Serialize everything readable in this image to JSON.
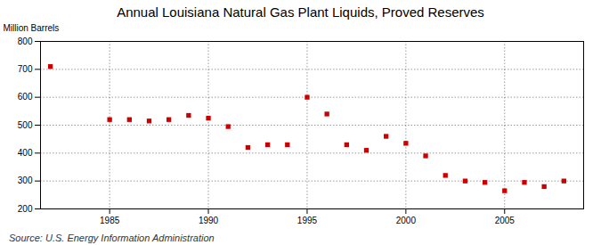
{
  "chart_data": {
    "type": "scatter",
    "title": "Annual Louisiana Natural Gas Plant Liquids, Proved Reserves",
    "ylabel": "Million Barrels",
    "source": "Source: U.S. Energy Information Administration",
    "x": [
      1982,
      1985,
      1986,
      1987,
      1988,
      1989,
      1990,
      1991,
      1992,
      1993,
      1994,
      1995,
      1996,
      1997,
      1998,
      1999,
      2000,
      2001,
      2002,
      2003,
      2004,
      2005,
      2006,
      2007,
      2008
    ],
    "values": [
      710,
      520,
      520,
      515,
      520,
      535,
      525,
      495,
      420,
      430,
      430,
      600,
      540,
      430,
      410,
      460,
      435,
      390,
      320,
      300,
      295,
      265,
      295,
      280,
      300
    ],
    "color": "#cc0000",
    "marker": "square",
    "xlim": [
      1981.5,
      2009
    ],
    "ylim": [
      200,
      800
    ],
    "xticks": [
      1985,
      1990,
      1995,
      2000,
      2005
    ],
    "yticks": [
      200,
      300,
      400,
      500,
      600,
      700,
      800
    ],
    "grid": true
  }
}
